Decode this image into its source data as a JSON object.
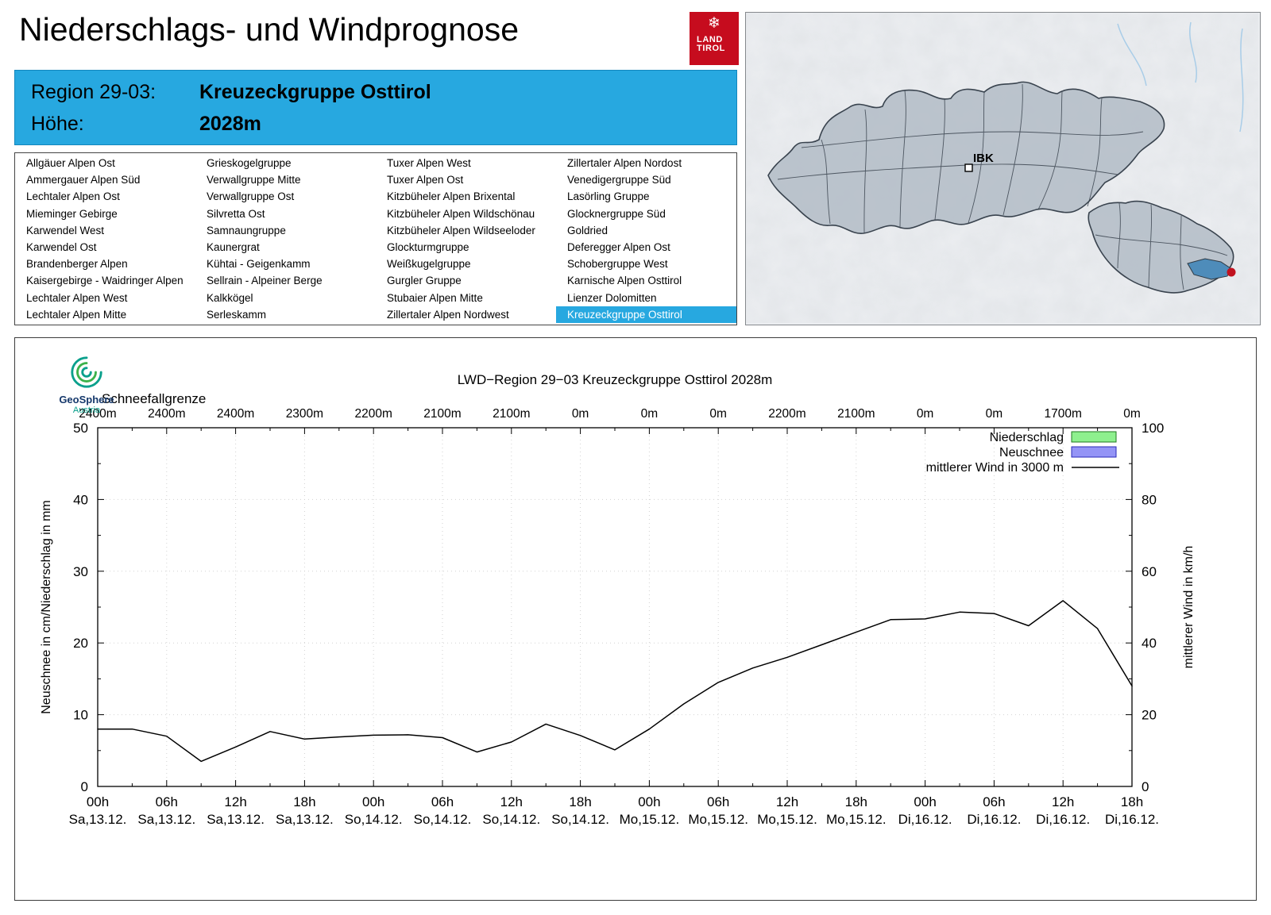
{
  "header": {
    "title": "Niederschlags- und Windprognose",
    "logo_line1": "LAND",
    "logo_line2": "TIROL",
    "region_label": "Region 29-03:",
    "region_value": "Kreuzeckgruppe Osttirol",
    "altitude_label": "Höhe:",
    "altitude_value": "2028m"
  },
  "colors": {
    "accent_blue": "#27a8e0",
    "logo_red": "#c60c1e",
    "selected_region_blue": "#4e8cba",
    "marker_red": "#c1121f"
  },
  "map": {
    "city_label": "IBK"
  },
  "geosphere": {
    "name": "GeoSphere",
    "country": "Austria"
  },
  "region_table": {
    "selected": "Kreuzeckgruppe Osttirol",
    "columns": [
      [
        "Allgäuer Alpen Ost",
        "Ammergauer Alpen Süd",
        "Lechtaler Alpen Ost",
        "Mieminger Gebirge",
        "Karwendel West",
        "Karwendel Ost",
        "Brandenberger Alpen",
        "Kaisergebirge - Waidringer Alpen",
        "Lechtaler Alpen West",
        "Lechtaler Alpen Mitte"
      ],
      [
        "Grieskogelgruppe",
        "Verwallgruppe Mitte",
        "Verwallgruppe Ost",
        "Silvretta Ost",
        "Samnaungruppe",
        "Kaunergrat",
        "Kühtai - Geigenkamm",
        "Sellrain - Alpeiner Berge",
        "Kalkkögel",
        "Serleskamm"
      ],
      [
        "Tuxer Alpen West",
        "Tuxer Alpen Ost",
        "Kitzbüheler Alpen Brixental",
        "Kitzbüheler Alpen Wildschönau",
        "Kitzbüheler Alpen Wildseeloder",
        "Glockturmgruppe",
        "Weißkugelgruppe",
        "Gurgler Gruppe",
        "Stubaier Alpen Mitte",
        "Zillertaler Alpen Nordwest"
      ],
      [
        "Zillertaler Alpen Nordost",
        "Venedigergruppe Süd",
        "Lasörling Gruppe",
        "Glocknergruppe Süd",
        "Goldried",
        "Deferegger Alpen Ost",
        "Schobergruppe West",
        "Karnische Alpen Osttirol",
        "Lienzer Dolomitten",
        "Kreuzeckgruppe Osttirol"
      ]
    ]
  },
  "chart_data": {
    "type": "line",
    "title": "LWD−Region 29−03 Kreuzeckgruppe Osttirol 2028m",
    "snowline": {
      "label": "Schneefallgrenze",
      "values": [
        "2400m",
        "2400m",
        "2400m",
        "2300m",
        "2200m",
        "2100m",
        "2100m",
        "0m",
        "0m",
        "0m",
        "2200m",
        "2100m",
        "0m",
        "0m",
        "1700m",
        "0m"
      ]
    },
    "axes": {
      "left_label": "Neuschnee in cm/Niederschlag in mm",
      "right_label": "mittlerer Wind in km/h",
      "left_ticks": [
        0,
        10,
        20,
        30,
        40,
        50
      ],
      "right_ticks": [
        0,
        20,
        40,
        60,
        80,
        100
      ],
      "left_range": [
        0,
        50
      ],
      "right_range": [
        0,
        100
      ],
      "grid": true
    },
    "x_axis": {
      "hours_range": [
        0,
        90
      ],
      "tick_step_hours": 6,
      "hour_labels": [
        "00h",
        "06h",
        "12h",
        "18h",
        "00h",
        "06h",
        "12h",
        "18h",
        "00h",
        "06h",
        "12h",
        "18h",
        "00h",
        "06h",
        "12h",
        "18h"
      ],
      "date_labels": [
        "Sa,13.12.",
        "Sa,13.12.",
        "Sa,13.12.",
        "Sa,13.12.",
        "So,14.12.",
        "So,14.12.",
        "So,14.12.",
        "So,14.12.",
        "Mo,15.12.",
        "Mo,15.12.",
        "Mo,15.12.",
        "Mo,15.12.",
        "Di,16.12.",
        "Di,16.12.",
        "Di,16.12.",
        "Di,16.12."
      ]
    },
    "legend": [
      {
        "label": "Niederschlag",
        "swatch": "box",
        "color": "#8ef08e",
        "border": "#1f7a1f"
      },
      {
        "label": "Neuschnee",
        "swatch": "box",
        "color": "#9494f6",
        "border": "#2a2ab8"
      },
      {
        "label": "mittlerer Wind in 3000 m",
        "swatch": "line",
        "color": "#000000"
      }
    ],
    "series": [
      {
        "name": "Niederschlag",
        "type": "bar",
        "axis": "left",
        "unit": "mm",
        "values": []
      },
      {
        "name": "Neuschnee",
        "type": "bar",
        "axis": "left",
        "unit": "cm",
        "values": []
      },
      {
        "name": "mittlerer Wind in 3000 m",
        "type": "line",
        "axis": "right",
        "unit": "km/h",
        "x_hours": [
          0,
          3,
          6,
          9,
          12,
          15,
          18,
          21,
          24,
          27,
          30,
          33,
          36,
          39,
          42,
          45,
          48,
          51,
          54,
          57,
          60,
          63,
          66,
          69,
          72,
          75,
          78,
          81,
          84,
          87,
          90
        ],
        "values": [
          16,
          16,
          14,
          7,
          11,
          15.3,
          13.2,
          13.8,
          14.3,
          14.4,
          13.6,
          9.6,
          12.4,
          17.4,
          14.2,
          10.2,
          16,
          23,
          29,
          33,
          36,
          39.5,
          43,
          46.5,
          46.7,
          48.6,
          48.2,
          44.8,
          51.8,
          44,
          28
        ]
      }
    ]
  }
}
